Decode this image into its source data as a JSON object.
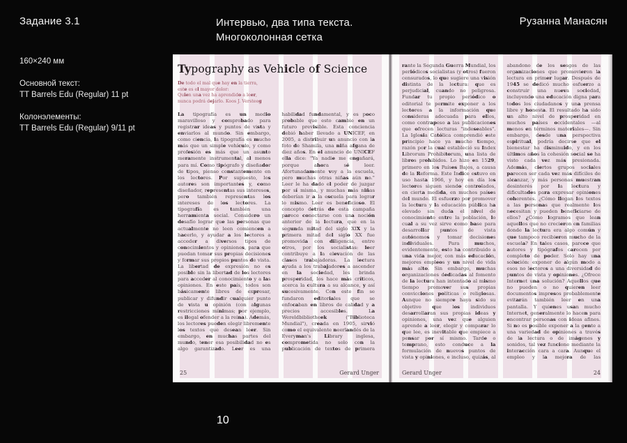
{
  "header": {
    "task": "Задание 3.1",
    "title": "Интервью, два типа текста.\nМногоколонная сетка",
    "author": "Рузанна Манасян"
  },
  "specs": {
    "format": "160×240 мм",
    "body_label": "Основной текст:",
    "body_value": "TT Barrels Edu (Regular) 11 pt",
    "columns_label": "Колонэлементы:",
    "columns_value": "TT Barrels Edu (Regular) 9/11 pt"
  },
  "portfolio_page_number": "10",
  "colors": {
    "background": "#070707",
    "page": "#fbfafa",
    "grid_guide_pink": "#eedfe7",
    "ink": "#4a4244",
    "epigraph_red": "#a75f6c"
  },
  "spread": {
    "left_page": {
      "title": "Typography as Vehicle of Science",
      "epigraph": "De todo el mal que hay en la tierra,\neste es el mayor dolor:\nQuien una vez ha aprendido a leer,\nnunca podrá dejarlo. Koos J. Versteeg",
      "body": "La tipografía es un medio maravilloso y comprobado para registrar ideas y puntos de vista y enviarlos al mundo. Sin embargo, como ciencia, la tipografía es mucho más que un simple vehículo, y como profesión es más que un asunto meramente instrumental, al menos para mí. Como tipógrafo y diseñador de tipos, pienso constantemente en los lectores. Por supuesto, los autores son importantes y, como diseñador, representas sus intereses, pero también representas los intereses de los lectores. La tipografía es también una herramienta social. Considero un desafío lograr que las personas que actualmente no leen comiencen a hacerlo, y ayudar a los lectores a acceder a diversos tipos de conocimientos y opiniones, para que puedan tomar sus propias decisiones y formar sus propios puntos de vista. La libertad de expresión no es posible sin la libertad de los lectores para acceder al conocimiento y a las opiniones. En este país, todos son básicamente libres de expresar, publicar y difundir cualquier punto de vista u opinión (con algunas restricciones mínimas; por ejemplo, es ilegal ofender a la reina). Además, los lectores pueden elegir libremente los textos que desean leer. Sin embargo, en muchas partes del mundo, tener esa posibilidad no es algo garantizado. Leer es una habilidad fundamental, y es poco probable que esto cambie en un futuro previsible. Esta conciencia debió haber llevado a UNICEF, en 2005, a distribuir un anuncio con la foto de Shamila, una niña afgana de diez años. En el anuncio de UNICEF ella dice: \"Ya nadie me engañará, porque ahora sé leer. Afortunadamente voy a la escuela, pero muchas otras niñas aún no.\" Leer le ha dado el poder de juzgar por sí misma, y muchas más niñas deberían ir a la escuela para lograr lo mismo. Leer es beneficioso. El concepto detrás de esta campaña parece conectarse con una noción anterior de la lectura, que en la segunda mitad del siglo XIX y la primera mitad del siglo XX fue promovida con diligencia, entre otros, por los socialistas: leer contribuye a la elevación de las clases trabajadoras. La lectura ayuda a los trabajadores a ascender en la sociedad, les brinda prosperidad, los hace más críticos, acerca la cultura a su alcance, y así sucesivamente. Con este fin se fundaron editoriales que se enfocaban en libros de calidad y a precios accesibles. La Wereldbibliotheek (\"Biblioteca Mundial\"), creada en 1905, sirvió como el equivalente neerlandés de la Everyman's Library inglesa, comprometida no solo con la publicación de textos de primera categoría, sino también con un diseño de libros de calidad. Iniciativas como estas iban de la mano con la continua mecanización de la industria gráfica, que facilitó la producción de impresos en tirajes cada vez mayores y a precios decrecientes. El periódico neerlandés Het Volk comenzó en 1900 y continuó en 1945 bajo el nombre Het Vrije Volk. Era el periódico que leíamos en casa. Por supuesto, du-",
      "footer_page": "25",
      "footer_author": "Gerard Unger"
    },
    "right_page": {
      "body": "rante la Segunda Guerra Mundial, los periódicos socialistas (y otros) fueron censurados, lo que sugiere una visión distinta de la lectura: que es perjudicial, cuando no peligrosa. Fundar tu propio periódico o editorial te permite exponer a los lectores a la información que consideras adecuada para ellos, como contrapeso a las publicaciones que ofrecen lecturas \"indeseables\". La Iglesia Católica comprendió este principio hace ya mucho tiempo, razón por la cual estableció su Index Librorum Prohibitorum, una lista de libros prohibidos. Lo hizo en 1529, primero en los Países Bajos, a causa de la Reforma. Este Índice estuvo en uso hasta 1966, y hoy en día los lectores siguen siendo controlados, en cierta medida, en muchos países del mundo. El esfuerzo por promover la lectura y la educación pública ha elevado sin duda el nivel de conocimiento entre la población, lo cual a su vez sirve como base para desarrollar puntos de vista autónomos y tomar decisiones individuales. Para muchos, evidentemente, esto ha contribuido a una vida mejor, con más educación, mejores empleos y un nivel de vida más alto. Sin embargo, muchas organizaciones dedicadas al fomento de la lectura han intentado al mismo tiempo promover sus propias convicciones políticas o religiosas. Aunque no siempre haya sido su objetivo que los individuos desarrollaran sus propias ideas y opiniones, una vez que alguien aprende a leer, elegir y comparar lo que lee, es inevitable que empiece a pensar por sí mismo. Tarde o temprano, esto conduce a la formulación de nuevos puntos de vista y opiniones, e incluso, quizás, al abandono de los sesgos de las organizaciones que promovieron la lectura en primer lugar. Después de 1945 se dedicó mucho esfuerzo a construir una nueva sociedad, incluyendo una educación digna para todos los ciudadanos y una prensa libre y honesta. El resultado ha sido un alto nivel de prosperidad en muchos países occidentales —al menos en términos materiales—. Sin embargo, desde una perspectiva espiritual, podría decirse que el bienestar ha disminuido, y en los últimos años la cohesión social se ha visto cada vez más presionada. Además, ciertos grupos sociales parecen ser cada vez más difíciles de alcanzar, y más personas muestran desinterés por la lectura y dificultades para expresar opiniones coherentes. ¿Cómo llegan los textos a las personas que realmente los necesitan y pueden beneficiarse de ellos? ¿Cómo logramos que lean aquellos que no crecieron en familias donde la lectura era algo común y que tampoco recibieron mucho de la escuela? En tales casos, parece que autores y tipógrafos carecen por completo de poder. Solo hay una solución: exponer de algún modo a esos no lectores a una diversidad de puntos de vista y opiniones. ¿Ofrece Internet una solución? Aquellos que no pueden o no quieren leer documentos impresos probablemente evitarán también leer en una pantalla. Y quienes usan mucho Internet, generalmente lo hacen para encontrar personas con ideas afines. Si no es posible exponer a la gente a una variedad de opiniones a través de la lectura o de imágenes y sonidos, tal vez funcione mediante la interacción cara a cara. Aunque el empleo y la mejora de las condiciones materiales y sociales son ciertamente cruciales, lo mismo ocurre con la amplia disponibilidad y diversidad de opiniones en la sociedad. En más de una ocasión me he encontrado con la crítica de que, cuando se trata de las necesidades básicas.",
      "footer_author": "Gerard Unger",
      "footer_page": "24"
    }
  }
}
